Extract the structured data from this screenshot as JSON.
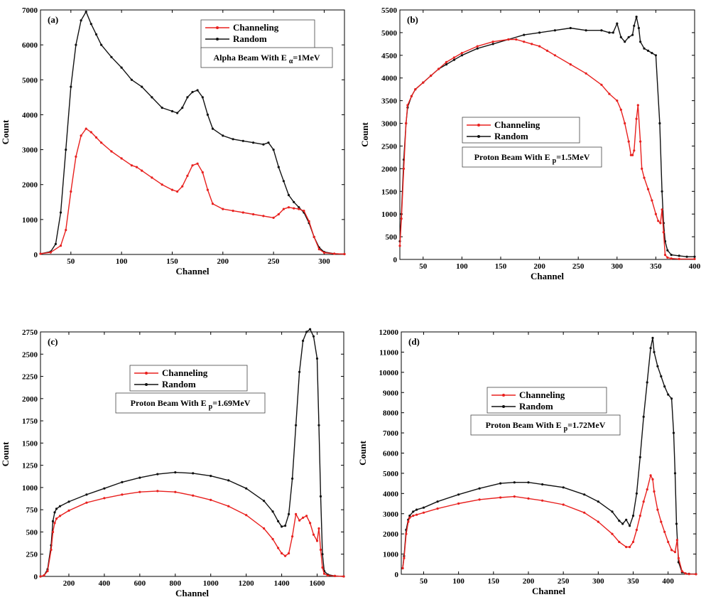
{
  "chart_data": [
    {
      "type": "line",
      "panel_label": "(a)",
      "xlabel": "Channel",
      "ylabel": "Count",
      "xlim": [
        20,
        320
      ],
      "ylim": [
        0,
        7000
      ],
      "xticks": [
        50,
        100,
        150,
        200,
        250,
        300
      ],
      "yticks": [
        0,
        1000,
        2000,
        3000,
        4000,
        5000,
        6000,
        7000
      ],
      "grid": false,
      "legend_position": "top-right",
      "annotation": {
        "prefix": "Alpha Beam With E",
        "sub": "α",
        "suffix": "=1MeV"
      },
      "series": [
        {
          "name": "Channeling",
          "color": "#e8201e",
          "x": [
            20,
            30,
            40,
            45,
            50,
            55,
            60,
            65,
            70,
            75,
            80,
            90,
            100,
            110,
            115,
            120,
            130,
            140,
            150,
            155,
            160,
            165,
            170,
            175,
            180,
            185,
            190,
            200,
            210,
            220,
            230,
            240,
            250,
            255,
            260,
            265,
            270,
            275,
            280,
            285,
            290,
            295,
            300,
            310,
            320
          ],
          "y": [
            20,
            60,
            250,
            700,
            1800,
            2800,
            3400,
            3600,
            3500,
            3350,
            3200,
            2950,
            2750,
            2550,
            2500,
            2400,
            2200,
            2000,
            1850,
            1800,
            1950,
            2250,
            2550,
            2600,
            2350,
            1850,
            1450,
            1300,
            1250,
            1200,
            1150,
            1100,
            1050,
            1150,
            1300,
            1350,
            1320,
            1300,
            1250,
            950,
            500,
            150,
            50,
            20,
            10
          ]
        },
        {
          "name": "Random",
          "color": "#111111",
          "x": [
            20,
            30,
            35,
            40,
            45,
            50,
            55,
            60,
            65,
            70,
            75,
            80,
            90,
            100,
            110,
            120,
            130,
            140,
            150,
            155,
            160,
            165,
            170,
            175,
            180,
            185,
            190,
            200,
            210,
            220,
            230,
            240,
            245,
            250,
            255,
            260,
            265,
            270,
            275,
            280,
            285,
            290,
            295,
            300,
            310,
            320
          ],
          "y": [
            20,
            80,
            300,
            1200,
            3000,
            4800,
            6000,
            6700,
            6950,
            6600,
            6300,
            6000,
            5650,
            5350,
            5000,
            4800,
            4500,
            4200,
            4100,
            4050,
            4200,
            4500,
            4650,
            4700,
            4500,
            4000,
            3600,
            3400,
            3300,
            3250,
            3200,
            3150,
            3200,
            3000,
            2500,
            2100,
            1700,
            1500,
            1350,
            1200,
            900,
            500,
            200,
            70,
            20,
            10
          ]
        }
      ]
    },
    {
      "type": "line",
      "panel_label": "(b)",
      "xlabel": "Channel",
      "ylabel": "Count",
      "xlim": [
        20,
        400
      ],
      "ylim": [
        0,
        5500
      ],
      "xticks": [
        50,
        100,
        150,
        200,
        250,
        300,
        350,
        400
      ],
      "yticks": [
        0,
        500,
        1000,
        1500,
        2000,
        2500,
        3000,
        3500,
        4000,
        4500,
        5000,
        5500
      ],
      "grid": false,
      "legend_position": "center-left",
      "annotation": {
        "prefix": "Proton Beam With E",
        "sub": "p",
        "suffix": "=1.5MeV"
      },
      "series": [
        {
          "name": "Channeling",
          "color": "#e8201e",
          "x": [
            20,
            22,
            25,
            28,
            30,
            35,
            40,
            50,
            60,
            70,
            80,
            90,
            100,
            120,
            140,
            160,
            170,
            180,
            190,
            200,
            210,
            220,
            240,
            260,
            280,
            290,
            300,
            305,
            310,
            315,
            318,
            320,
            322,
            325,
            327,
            330,
            332,
            335,
            340,
            345,
            350,
            353,
            356,
            358,
            360,
            362,
            365,
            370,
            380,
            400
          ],
          "y": [
            300,
            900,
            2000,
            3000,
            3400,
            3600,
            3750,
            3900,
            4050,
            4200,
            4350,
            4450,
            4550,
            4700,
            4800,
            4850,
            4850,
            4800,
            4750,
            4700,
            4600,
            4500,
            4300,
            4100,
            3850,
            3650,
            3500,
            3300,
            3000,
            2600,
            2300,
            2300,
            2400,
            3100,
            3400,
            2600,
            2000,
            1800,
            1550,
            1300,
            1000,
            850,
            800,
            1100,
            600,
            100,
            40,
            20,
            10,
            10
          ]
        },
        {
          "name": "Random",
          "color": "#111111",
          "x": [
            20,
            22,
            25,
            28,
            30,
            35,
            40,
            50,
            60,
            70,
            80,
            90,
            100,
            120,
            140,
            160,
            180,
            200,
            220,
            240,
            260,
            280,
            290,
            295,
            300,
            305,
            310,
            315,
            320,
            322,
            325,
            328,
            330,
            335,
            340,
            345,
            350,
            355,
            358,
            360,
            362,
            365,
            370,
            380,
            390,
            400
          ],
          "y": [
            400,
            1000,
            2200,
            3000,
            3350,
            3600,
            3750,
            3900,
            4050,
            4200,
            4300,
            4400,
            4500,
            4650,
            4750,
            4850,
            4950,
            5000,
            5050,
            5100,
            5050,
            5050,
            5000,
            5000,
            5200,
            4900,
            4800,
            4900,
            4950,
            5150,
            5350,
            5100,
            4800,
            4650,
            4600,
            4550,
            4500,
            3000,
            1500,
            800,
            400,
            200,
            100,
            80,
            60,
            60
          ]
        }
      ]
    },
    {
      "type": "line",
      "panel_label": "(c)",
      "xlabel": "Channel",
      "ylabel": "Count",
      "xlim": [
        40,
        1750
      ],
      "ylim": [
        0,
        2750
      ],
      "xticks": [
        200,
        400,
        600,
        800,
        1000,
        1200,
        1400,
        1600
      ],
      "yticks": [
        0,
        250,
        500,
        750,
        1000,
        1250,
        1500,
        1750,
        2000,
        2250,
        2500,
        2750
      ],
      "grid": false,
      "legend_position": "top-center",
      "annotation": {
        "prefix": "Proton Beam With E",
        "sub": "p",
        "suffix": "=1.69MeV"
      },
      "series": [
        {
          "name": "Channeling",
          "color": "#e8201e",
          "x": [
            40,
            60,
            80,
            100,
            110,
            120,
            130,
            150,
            200,
            300,
            400,
            500,
            600,
            700,
            800,
            900,
            1000,
            1100,
            1200,
            1300,
            1350,
            1380,
            1400,
            1420,
            1440,
            1460,
            1480,
            1500,
            1520,
            1540,
            1560,
            1580,
            1600,
            1610,
            1620,
            1630,
            1640,
            1660,
            1700,
            1750
          ],
          "y": [
            0,
            10,
            60,
            300,
            500,
            600,
            650,
            680,
            740,
            830,
            880,
            920,
            950,
            960,
            950,
            910,
            860,
            790,
            690,
            540,
            420,
            320,
            260,
            230,
            260,
            450,
            700,
            630,
            660,
            680,
            600,
            470,
            400,
            540,
            300,
            100,
            30,
            10,
            5,
            0
          ]
        },
        {
          "name": "Random",
          "color": "#111111",
          "x": [
            40,
            60,
            80,
            100,
            110,
            120,
            130,
            150,
            200,
            300,
            400,
            500,
            600,
            700,
            800,
            900,
            1000,
            1100,
            1200,
            1300,
            1350,
            1380,
            1400,
            1420,
            1440,
            1460,
            1480,
            1500,
            1520,
            1540,
            1560,
            1580,
            1600,
            1610,
            1620,
            1630,
            1640,
            1660,
            1700,
            1750
          ],
          "y": [
            0,
            10,
            80,
            350,
            620,
            720,
            760,
            790,
            840,
            920,
            990,
            1060,
            1110,
            1150,
            1170,
            1160,
            1130,
            1080,
            990,
            850,
            730,
            620,
            560,
            570,
            700,
            1100,
            1700,
            2300,
            2650,
            2750,
            2780,
            2700,
            2450,
            1700,
            900,
            250,
            60,
            20,
            5,
            0
          ]
        }
      ]
    },
    {
      "type": "line",
      "panel_label": "(d)",
      "xlabel": "Channel",
      "ylabel": "Count",
      "xlim": [
        18,
        440
      ],
      "ylim": [
        0,
        12000
      ],
      "xticks": [
        50,
        100,
        150,
        200,
        250,
        300,
        350,
        400
      ],
      "yticks": [
        0,
        1000,
        2000,
        3000,
        4000,
        5000,
        6000,
        7000,
        8000,
        9000,
        10000,
        11000,
        12000
      ],
      "grid": false,
      "legend_position": "top-center",
      "annotation": {
        "prefix": "Proton Beam With E",
        "sub": "p",
        "suffix": "=1.72MeV"
      },
      "series": [
        {
          "name": "Channeling",
          "color": "#e8201e",
          "x": [
            20,
            22,
            25,
            28,
            30,
            35,
            40,
            50,
            70,
            100,
            130,
            160,
            180,
            200,
            220,
            250,
            280,
            300,
            320,
            330,
            340,
            345,
            350,
            355,
            360,
            365,
            370,
            375,
            378,
            380,
            385,
            390,
            395,
            400,
            405,
            410,
            413,
            415,
            420,
            425,
            430,
            440
          ],
          "y": [
            300,
            800,
            2000,
            2600,
            2800,
            2900,
            2950,
            3050,
            3250,
            3500,
            3700,
            3800,
            3850,
            3750,
            3650,
            3450,
            3050,
            2600,
            2000,
            1600,
            1350,
            1350,
            1600,
            2200,
            2900,
            3600,
            4200,
            4900,
            4700,
            4100,
            3200,
            2600,
            2100,
            1600,
            1200,
            1100,
            1700,
            800,
            150,
            40,
            10,
            5
          ]
        },
        {
          "name": "Random",
          "color": "#111111",
          "x": [
            20,
            22,
            25,
            28,
            30,
            35,
            40,
            50,
            70,
            100,
            130,
            160,
            180,
            200,
            220,
            250,
            280,
            300,
            320,
            330,
            335,
            340,
            345,
            350,
            355,
            360,
            365,
            370,
            375,
            378,
            380,
            385,
            390,
            395,
            400,
            405,
            408,
            410,
            412,
            415,
            420,
            425,
            430,
            440
          ],
          "y": [
            300,
            900,
            2200,
            2700,
            2900,
            3100,
            3200,
            3300,
            3600,
            3950,
            4250,
            4500,
            4550,
            4550,
            4450,
            4300,
            3950,
            3600,
            3100,
            2650,
            2500,
            2700,
            2400,
            2900,
            4000,
            5800,
            7800,
            9500,
            11200,
            11700,
            11000,
            10300,
            9800,
            9300,
            8900,
            8700,
            7000,
            5000,
            2500,
            600,
            100,
            40,
            20,
            10
          ]
        }
      ]
    }
  ]
}
